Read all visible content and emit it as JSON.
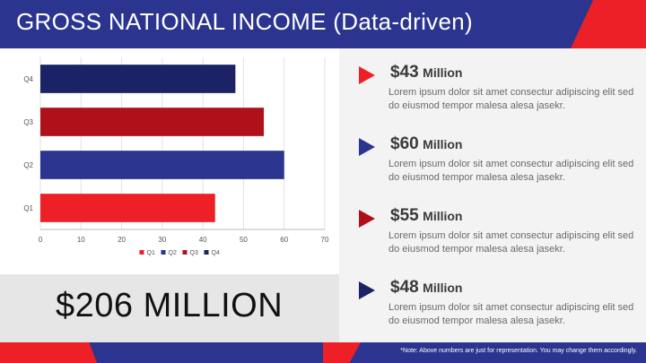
{
  "title": "GROSS NATIONAL INCOME (Data-driven)",
  "chart_data": {
    "type": "bar",
    "orientation": "horizontal",
    "categories": [
      "Q1",
      "Q2",
      "Q3",
      "Q4"
    ],
    "values": [
      43,
      60,
      55,
      48
    ],
    "colors": [
      "#ee2027",
      "#2b3590",
      "#b0101a",
      "#1c2266"
    ],
    "xlim": [
      0,
      70
    ],
    "xticks": [
      0,
      10,
      20,
      30,
      40,
      50,
      60,
      70
    ],
    "grid": true,
    "legend": {
      "placement": "bottom",
      "entries": [
        "Q1",
        "Q2",
        "Q3",
        "Q4"
      ]
    },
    "title": "",
    "xlabel": "",
    "ylabel": ""
  },
  "total": "$206 MILLION",
  "items": [
    {
      "value": "$43",
      "unit": "Million",
      "desc": "Lorem ipsum dolor sit amet consectur adipiscing elit sed do eiusmod tempor malesa alesa jasekr.",
      "color": "#ee2027"
    },
    {
      "value": "$60",
      "unit": "Million",
      "desc": "Lorem ipsum dolor sit amet consectur adipiscing elit sed do eiusmod tempor malesa alesa jasekr.",
      "color": "#2b3590"
    },
    {
      "value": "$55",
      "unit": "Million",
      "desc": "Lorem ipsum dolor sit amet consectur adipiscing elit sed do eiusmod tempor malesa alesa jasekr.",
      "color": "#b0101a"
    },
    {
      "value": "$48",
      "unit": "Million",
      "desc": "Lorem ipsum dolor sit amet consectur adipiscing elit sed do eiusmod tempor malesa alesa jasekr.",
      "color": "#1c2266"
    }
  ],
  "note": "*Note: Above numbers are just for representation. You may change them accordingly."
}
